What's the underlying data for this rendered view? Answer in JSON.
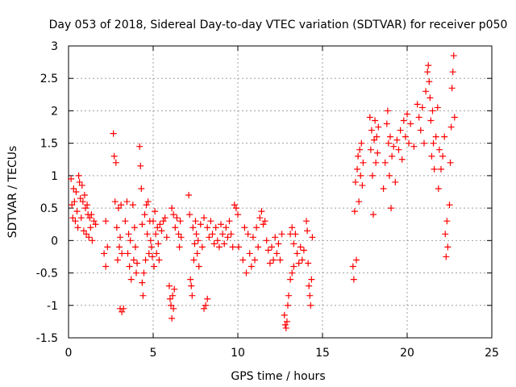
{
  "chart_data": {
    "type": "scatter",
    "title": "Day 053 of 2018, Sidereal Day-to-day VTEC variation (SDTVAR) for receiver p050",
    "xlabel": "GPS time / hours",
    "ylabel": "SDTVAR / TECUs",
    "xlim": [
      0,
      25
    ],
    "ylim": [
      -1.5,
      3
    ],
    "x_ticks": [
      0,
      5,
      10,
      15,
      20,
      25
    ],
    "x_tick_labels": [
      "0",
      "5",
      "10",
      "15",
      "20",
      "25"
    ],
    "y_ticks": [
      -1.5,
      -1,
      -0.5,
      0,
      0.5,
      1,
      1.5,
      2,
      2.5,
      3
    ],
    "y_tick_labels": [
      "-1.5",
      "-1",
      "-0.5",
      "0",
      "0.5",
      "1",
      "1.5",
      "2",
      "2.5",
      "3"
    ],
    "grid": true,
    "marker": "+",
    "colors": {
      "series": "#ff0000",
      "axes": "#000000",
      "grid": "#a0a0a0"
    },
    "series": [
      {
        "name": "SDTVAR",
        "points": [
          [
            0.15,
            0.95
          ],
          [
            0.2,
            0.55
          ],
          [
            0.25,
            0.35
          ],
          [
            0.3,
            0.8
          ],
          [
            0.35,
            0.6
          ],
          [
            0.4,
            0.3
          ],
          [
            0.45,
            0.75
          ],
          [
            0.5,
            0.45
          ],
          [
            0.55,
            0.2
          ],
          [
            0.6,
            1.0
          ],
          [
            0.65,
            0.9
          ],
          [
            0.7,
            0.65
          ],
          [
            0.75,
            0.35
          ],
          [
            0.8,
            0.85
          ],
          [
            0.85,
            0.6
          ],
          [
            0.9,
            0.15
          ],
          [
            0.95,
            0.7
          ],
          [
            1.0,
            0.5
          ],
          [
            1.05,
            0.1
          ],
          [
            1.1,
            0.55
          ],
          [
            1.15,
            0.4
          ],
          [
            1.2,
            0.05
          ],
          [
            1.25,
            0.35
          ],
          [
            1.3,
            0.2
          ],
          [
            1.35,
            0.4
          ],
          [
            1.4,
            0.0
          ],
          [
            1.5,
            0.3
          ],
          [
            1.6,
            0.25
          ],
          [
            2.1,
            -0.2
          ],
          [
            2.2,
            -0.4
          ],
          [
            2.2,
            0.3
          ],
          [
            2.3,
            -0.1
          ],
          [
            2.65,
            1.65
          ],
          [
            2.7,
            1.3
          ],
          [
            2.75,
            0.6
          ],
          [
            2.8,
            1.2
          ],
          [
            2.85,
            0.2
          ],
          [
            2.9,
            -0.3
          ],
          [
            2.95,
            0.5
          ],
          [
            3.0,
            -0.1
          ],
          [
            3.05,
            0.05
          ],
          [
            3.1,
            0.55
          ],
          [
            3.15,
            -0.2
          ],
          [
            3.05,
            -1.05
          ],
          [
            3.15,
            -1.1
          ],
          [
            3.25,
            -1.05
          ],
          [
            3.35,
            0.3
          ],
          [
            3.45,
            0.6
          ],
          [
            3.5,
            -0.2
          ],
          [
            3.55,
            0.1
          ],
          [
            3.6,
            -0.4
          ],
          [
            3.65,
            0.0
          ],
          [
            3.7,
            -0.6
          ],
          [
            3.8,
            0.55
          ],
          [
            3.85,
            -0.3
          ],
          [
            3.9,
            0.2
          ],
          [
            3.95,
            -0.1
          ],
          [
            4.0,
            -0.5
          ],
          [
            4.05,
            -0.35
          ],
          [
            4.2,
            1.45
          ],
          [
            4.25,
            1.15
          ],
          [
            4.3,
            0.8
          ],
          [
            4.35,
            0.25
          ],
          [
            4.35,
            -0.65
          ],
          [
            4.4,
            -0.85
          ],
          [
            4.45,
            -0.5
          ],
          [
            4.5,
            0.4
          ],
          [
            4.55,
            -0.3
          ],
          [
            4.6,
            0.55
          ],
          [
            4.65,
            0.1
          ],
          [
            4.7,
            0.6
          ],
          [
            4.75,
            -0.2
          ],
          [
            4.8,
            0.3
          ],
          [
            4.85,
            0.0
          ],
          [
            4.9,
            -0.1
          ],
          [
            4.95,
            -0.25
          ],
          [
            5.0,
            0.3
          ],
          [
            5.05,
            -0.4
          ],
          [
            5.1,
            0.45
          ],
          [
            5.15,
            0.1
          ],
          [
            5.2,
            -0.2
          ],
          [
            5.25,
            0.2
          ],
          [
            5.3,
            -0.05
          ],
          [
            5.35,
            -0.3
          ],
          [
            5.4,
            0.25
          ],
          [
            5.5,
            0.15
          ],
          [
            5.6,
            0.3
          ],
          [
            5.7,
            0.35
          ],
          [
            5.8,
            0.05
          ],
          [
            5.95,
            -0.7
          ],
          [
            6.0,
            -0.9
          ],
          [
            6.05,
            -1.0
          ],
          [
            6.1,
            -1.2
          ],
          [
            6.15,
            -0.85
          ],
          [
            6.2,
            -1.05
          ],
          [
            6.25,
            -0.75
          ],
          [
            6.1,
            0.5
          ],
          [
            6.2,
            0.4
          ],
          [
            6.3,
            0.2
          ],
          [
            6.4,
            0.35
          ],
          [
            6.5,
            0.1
          ],
          [
            6.55,
            -0.1
          ],
          [
            6.6,
            0.3
          ],
          [
            6.65,
            0.05
          ],
          [
            7.1,
            0.7
          ],
          [
            7.15,
            0.4
          ],
          [
            7.2,
            -0.6
          ],
          [
            7.25,
            -0.7
          ],
          [
            7.3,
            -0.85
          ],
          [
            7.35,
            0.2
          ],
          [
            7.4,
            -0.3
          ],
          [
            7.45,
            -0.05
          ],
          [
            7.5,
            0.3
          ],
          [
            7.55,
            0.1
          ],
          [
            7.6,
            -0.2
          ],
          [
            7.65,
            0.0
          ],
          [
            7.7,
            -0.4
          ],
          [
            7.8,
            0.25
          ],
          [
            7.9,
            -0.1
          ],
          [
            8.0,
            0.35
          ],
          [
            8.0,
            -1.05
          ],
          [
            8.1,
            -1.0
          ],
          [
            8.2,
            -0.9
          ],
          [
            8.2,
            0.2
          ],
          [
            8.3,
            0.05
          ],
          [
            8.4,
            0.3
          ],
          [
            8.5,
            0.1
          ],
          [
            8.6,
            -0.05
          ],
          [
            8.7,
            0.2
          ],
          [
            8.8,
            0.0
          ],
          [
            8.9,
            -0.1
          ],
          [
            9.0,
            0.25
          ],
          [
            9.1,
            0.1
          ],
          [
            9.2,
            -0.05
          ],
          [
            9.3,
            0.2
          ],
          [
            9.4,
            0.05
          ],
          [
            9.5,
            0.3
          ],
          [
            9.6,
            0.1
          ],
          [
            9.7,
            -0.1
          ],
          [
            9.8,
            0.55
          ],
          [
            9.9,
            0.5
          ],
          [
            10.0,
            0.4
          ],
          [
            10.05,
            -0.1
          ],
          [
            10.3,
            -0.3
          ],
          [
            10.4,
            0.2
          ],
          [
            10.5,
            -0.5
          ],
          [
            10.6,
            0.1
          ],
          [
            10.7,
            -0.2
          ],
          [
            10.8,
            -0.4
          ],
          [
            10.9,
            0.05
          ],
          [
            11.0,
            -0.3
          ],
          [
            11.1,
            0.2
          ],
          [
            11.2,
            -0.1
          ],
          [
            11.3,
            0.35
          ],
          [
            11.4,
            0.45
          ],
          [
            11.5,
            0.25
          ],
          [
            11.6,
            0.3
          ],
          [
            11.7,
            0.0
          ],
          [
            11.8,
            -0.15
          ],
          [
            11.9,
            -0.35
          ],
          [
            12.0,
            -0.1
          ],
          [
            12.1,
            -0.3
          ],
          [
            12.2,
            0.05
          ],
          [
            12.3,
            -0.2
          ],
          [
            12.4,
            -0.05
          ],
          [
            12.5,
            -0.3
          ],
          [
            12.6,
            0.1
          ],
          [
            12.75,
            -1.15
          ],
          [
            12.8,
            -1.3
          ],
          [
            12.85,
            -1.35
          ],
          [
            12.9,
            -1.25
          ],
          [
            12.95,
            -1.0
          ],
          [
            13.0,
            -0.85
          ],
          [
            13.1,
            -0.6
          ],
          [
            13.2,
            -0.5
          ],
          [
            13.3,
            -0.4
          ],
          [
            13.1,
            0.1
          ],
          [
            13.2,
            0.2
          ],
          [
            13.3,
            -0.05
          ],
          [
            13.4,
            0.1
          ],
          [
            13.5,
            -0.2
          ],
          [
            13.6,
            -0.35
          ],
          [
            13.7,
            -0.1
          ],
          [
            13.8,
            -0.3
          ],
          [
            13.9,
            -0.15
          ],
          [
            14.05,
            0.3
          ],
          [
            14.1,
            0.15
          ],
          [
            14.15,
            -0.35
          ],
          [
            14.2,
            -0.7
          ],
          [
            14.25,
            -0.85
          ],
          [
            14.3,
            -1.0
          ],
          [
            14.35,
            -0.6
          ],
          [
            14.4,
            0.05
          ],
          [
            16.8,
            -0.4
          ],
          [
            16.85,
            -0.6
          ],
          [
            16.9,
            0.45
          ],
          [
            16.95,
            0.9
          ],
          [
            17.0,
            -0.3
          ],
          [
            17.05,
            1.1
          ],
          [
            17.1,
            1.3
          ],
          [
            17.15,
            0.6
          ],
          [
            17.2,
            1.4
          ],
          [
            17.25,
            1.0
          ],
          [
            17.3,
            1.5
          ],
          [
            17.35,
            0.85
          ],
          [
            17.4,
            1.2
          ],
          [
            17.8,
            1.9
          ],
          [
            17.85,
            1.4
          ],
          [
            17.9,
            1.7
          ],
          [
            17.95,
            1.0
          ],
          [
            18.0,
            0.4
          ],
          [
            18.05,
            1.55
          ],
          [
            18.1,
            1.85
          ],
          [
            18.15,
            1.2
          ],
          [
            18.2,
            1.6
          ],
          [
            18.25,
            1.35
          ],
          [
            18.3,
            1.75
          ],
          [
            18.6,
            0.8
          ],
          [
            18.7,
            1.2
          ],
          [
            18.8,
            1.8
          ],
          [
            18.85,
            2.0
          ],
          [
            18.9,
            1.5
          ],
          [
            18.95,
            1.0
          ],
          [
            19.0,
            1.6
          ],
          [
            19.05,
            0.5
          ],
          [
            19.1,
            1.3
          ],
          [
            19.2,
            1.45
          ],
          [
            19.3,
            0.9
          ],
          [
            19.4,
            1.55
          ],
          [
            19.5,
            1.4
          ],
          [
            19.6,
            1.7
          ],
          [
            19.7,
            1.25
          ],
          [
            19.8,
            1.85
          ],
          [
            19.9,
            1.6
          ],
          [
            20.0,
            1.95
          ],
          [
            20.1,
            1.5
          ],
          [
            20.2,
            1.8
          ],
          [
            20.4,
            1.45
          ],
          [
            20.6,
            2.1
          ],
          [
            20.7,
            1.9
          ],
          [
            20.8,
            1.7
          ],
          [
            20.9,
            2.05
          ],
          [
            21.0,
            1.5
          ],
          [
            21.1,
            2.3
          ],
          [
            21.2,
            2.6
          ],
          [
            21.25,
            2.7
          ],
          [
            21.3,
            2.45
          ],
          [
            21.35,
            2.2
          ],
          [
            21.4,
            1.85
          ],
          [
            21.45,
            1.3
          ],
          [
            21.5,
            2.0
          ],
          [
            21.55,
            1.5
          ],
          [
            21.6,
            1.1
          ],
          [
            21.7,
            1.6
          ],
          [
            21.8,
            2.05
          ],
          [
            21.85,
            0.8
          ],
          [
            21.9,
            1.4
          ],
          [
            22.0,
            1.1
          ],
          [
            22.1,
            1.3
          ],
          [
            22.2,
            1.6
          ],
          [
            22.25,
            0.1
          ],
          [
            22.3,
            -0.25
          ],
          [
            22.35,
            0.3
          ],
          [
            22.4,
            -0.1
          ],
          [
            22.5,
            0.55
          ],
          [
            22.55,
            1.2
          ],
          [
            22.6,
            1.75
          ],
          [
            22.65,
            2.35
          ],
          [
            22.7,
            2.6
          ],
          [
            22.75,
            2.85
          ],
          [
            22.8,
            1.9
          ]
        ]
      }
    ]
  }
}
